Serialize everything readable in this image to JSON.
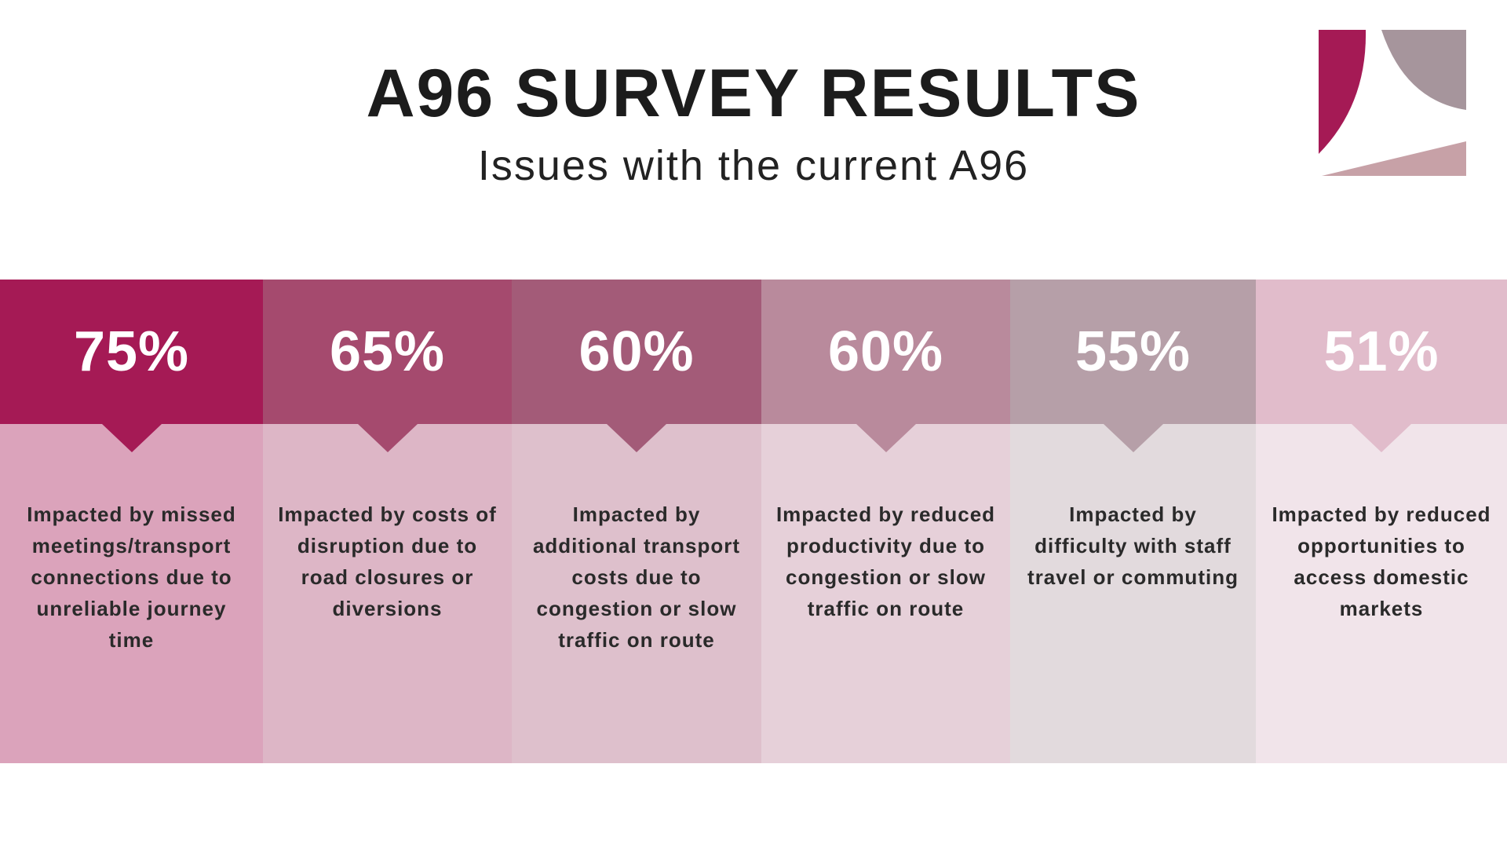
{
  "header": {
    "title": "A96 SURVEY RESULTS",
    "subtitle": "Issues with the current A96"
  },
  "logo": {
    "icon": "abstract-brand-logo",
    "colors": [
      "#a51a55",
      "#a6959c",
      "#c7a1a7"
    ]
  },
  "results": [
    {
      "percent": "75%",
      "value": 75,
      "label": "Impacted by missed meetings/transport connections due to unreliable journey time",
      "top_color": "#a51a55",
      "bottom_color": "#dba3bb"
    },
    {
      "percent": "65%",
      "value": 65,
      "label": "Impacted by costs of disruption due to road closures or diversions",
      "top_color": "#a54a6e",
      "bottom_color": "#ddb6c6"
    },
    {
      "percent": "60%",
      "value": 60,
      "label": "Impacted by additional transport costs due to congestion or slow traffic on route",
      "top_color": "#a35b78",
      "bottom_color": "#dec0cc"
    },
    {
      "percent": "60%",
      "value": 60,
      "label": "Impacted by reduced productivity due to congestion or slow traffic on route",
      "top_color": "#b98a9c",
      "bottom_color": "#e6d0d9"
    },
    {
      "percent": "55%",
      "value": 55,
      "label": "Impacted by difficulty with staff travel or commuting",
      "top_color": "#b69fa8",
      "bottom_color": "#e2dadd"
    },
    {
      "percent": "51%",
      "value": 51,
      "label": "Impacted by reduced opportunities to access domestic markets",
      "top_color": "#e1bccb",
      "bottom_color": "#f1e4ea"
    }
  ]
}
